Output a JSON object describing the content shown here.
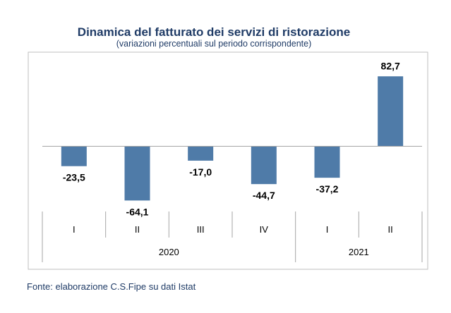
{
  "chart_data": {
    "type": "bar",
    "title": "Dinamica del fatturato dei servizi di ristorazione",
    "subtitle": "(variazioni percentuali sul periodo corrispondente)",
    "categories": [
      "I",
      "II",
      "III",
      "IV",
      "I",
      "II"
    ],
    "years": [
      {
        "label": "2020",
        "span": 4
      },
      {
        "label": "2021",
        "span": 2
      }
    ],
    "values": [
      -23.5,
      -64.1,
      -17.0,
      -44.7,
      -37.2,
      82.7
    ],
    "data_labels": [
      "-23,5",
      "-64,1",
      "-17,0",
      "-44,7",
      "-37,2",
      "82,7"
    ],
    "ylim": [
      -70,
      90
    ],
    "xlabel": "",
    "ylabel": "",
    "grid": false,
    "bar_color": "#4f7ba8"
  },
  "source": "Fonte: elaborazione C.S.Fipe su dati Istat"
}
